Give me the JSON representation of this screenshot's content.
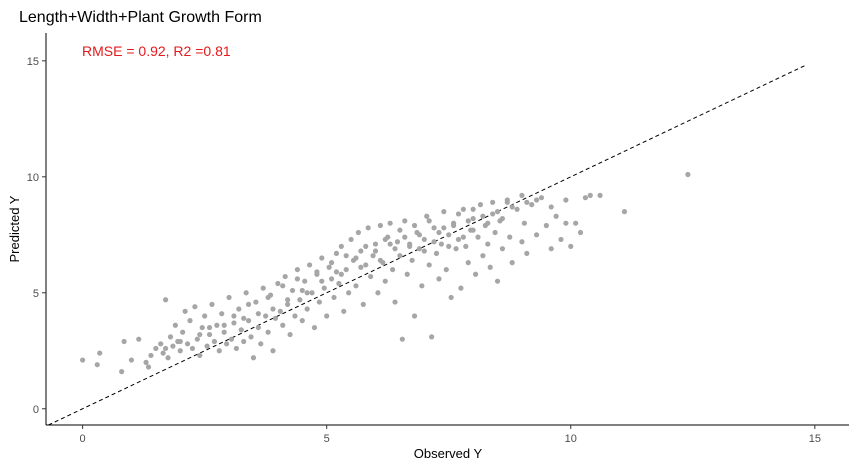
{
  "chart_data": {
    "type": "scatter",
    "title": "Length+Width+Plant Growth Form",
    "annotation": "RMSE = 0.92, R2 =0.81",
    "xlabel": "Observed Y",
    "ylabel": "Predicted Y",
    "xlim": [
      -0.75,
      15.7
    ],
    "ylim": [
      -0.7,
      16.2
    ],
    "x_ticks": [
      0,
      5,
      10,
      15
    ],
    "y_ticks": [
      0,
      5,
      10,
      15
    ],
    "grid": false,
    "reference_line": {
      "style": "dashed",
      "color": "#000000",
      "slope": 1,
      "intercept": 0,
      "x_range": [
        -0.7,
        14.8
      ]
    },
    "point_color": "#a6a6a6",
    "points": [
      [
        0.0,
        2.1
      ],
      [
        0.3,
        1.9
      ],
      [
        0.35,
        2.4
      ],
      [
        0.8,
        1.6
      ],
      [
        0.85,
        2.9
      ],
      [
        1.0,
        2.1
      ],
      [
        1.15,
        3.0
      ],
      [
        1.3,
        2.0
      ],
      [
        1.35,
        1.8
      ],
      [
        1.4,
        2.3
      ],
      [
        1.5,
        2.6
      ],
      [
        1.6,
        2.8
      ],
      [
        1.65,
        2.4
      ],
      [
        1.7,
        4.7
      ],
      [
        1.75,
        2.2
      ],
      [
        1.8,
        3.1
      ],
      [
        1.85,
        2.7
      ],
      [
        1.9,
        3.6
      ],
      [
        1.95,
        2.9
      ],
      [
        2.0,
        2.5
      ],
      [
        2.05,
        3.3
      ],
      [
        2.1,
        4.2
      ],
      [
        2.15,
        2.8
      ],
      [
        2.2,
        3.8
      ],
      [
        2.25,
        2.6
      ],
      [
        2.3,
        4.4
      ],
      [
        2.35,
        3.0
      ],
      [
        2.4,
        2.3
      ],
      [
        2.45,
        3.5
      ],
      [
        2.5,
        4.0
      ],
      [
        2.55,
        2.7
      ],
      [
        2.6,
        3.2
      ],
      [
        2.65,
        4.5
      ],
      [
        2.7,
        2.9
      ],
      [
        2.75,
        3.6
      ],
      [
        2.8,
        2.5
      ],
      [
        2.85,
        4.1
      ],
      [
        2.9,
        3.3
      ],
      [
        2.95,
        2.8
      ],
      [
        3.0,
        4.8
      ],
      [
        3.05,
        3.0
      ],
      [
        3.1,
        3.7
      ],
      [
        3.15,
        2.6
      ],
      [
        3.2,
        4.3
      ],
      [
        3.25,
        3.4
      ],
      [
        3.3,
        2.9
      ],
      [
        3.35,
        5.0
      ],
      [
        3.4,
        3.8
      ],
      [
        3.45,
        3.1
      ],
      [
        3.5,
        2.2
      ],
      [
        3.55,
        4.6
      ],
      [
        3.6,
        3.5
      ],
      [
        3.65,
        2.8
      ],
      [
        3.7,
        5.2
      ],
      [
        3.75,
        4.0
      ],
      [
        3.8,
        3.3
      ],
      [
        3.85,
        4.9
      ],
      [
        3.9,
        2.5
      ],
      [
        3.95,
        3.9
      ],
      [
        4.0,
        5.4
      ],
      [
        4.05,
        4.2
      ],
      [
        4.1,
        3.6
      ],
      [
        4.15,
        5.7
      ],
      [
        4.2,
        4.5
      ],
      [
        4.25,
        3.2
      ],
      [
        4.3,
        5.1
      ],
      [
        4.35,
        4.0
      ],
      [
        4.4,
        6.0
      ],
      [
        4.45,
        4.7
      ],
      [
        4.5,
        3.8
      ],
      [
        4.55,
        5.5
      ],
      [
        4.6,
        4.3
      ],
      [
        4.65,
        6.2
      ],
      [
        4.7,
        5.0
      ],
      [
        4.75,
        3.5
      ],
      [
        4.8,
        5.8
      ],
      [
        4.85,
        4.6
      ],
      [
        4.9,
        6.5
      ],
      [
        4.95,
        5.2
      ],
      [
        5.0,
        4.0
      ],
      [
        5.05,
        6.1
      ],
      [
        5.1,
        5.6
      ],
      [
        5.15,
        4.8
      ],
      [
        5.2,
        6.7
      ],
      [
        5.25,
        5.4
      ],
      [
        5.3,
        7.0
      ],
      [
        5.35,
        4.2
      ],
      [
        5.4,
        6.0
      ],
      [
        5.45,
        5.0
      ],
      [
        5.5,
        7.3
      ],
      [
        5.55,
        6.4
      ],
      [
        5.6,
        5.3
      ],
      [
        5.65,
        7.6
      ],
      [
        5.7,
        6.8
      ],
      [
        5.75,
        4.5
      ],
      [
        5.8,
        6.2
      ],
      [
        5.85,
        7.8
      ],
      [
        5.9,
        5.7
      ],
      [
        5.95,
        6.6
      ],
      [
        6.0,
        7.1
      ],
      [
        6.05,
        5.0
      ],
      [
        6.1,
        7.9
      ],
      [
        6.15,
        6.3
      ],
      [
        6.2,
        5.5
      ],
      [
        6.25,
        7.4
      ],
      [
        6.3,
        8.0
      ],
      [
        6.35,
        6.0
      ],
      [
        6.4,
        4.6
      ],
      [
        6.45,
        7.2
      ],
      [
        6.5,
        6.6
      ],
      [
        6.55,
        3.0
      ],
      [
        6.6,
        8.1
      ],
      [
        6.65,
        5.8
      ],
      [
        6.7,
        7.0
      ],
      [
        6.75,
        6.4
      ],
      [
        6.8,
        4.0
      ],
      [
        6.85,
        7.6
      ],
      [
        6.9,
        6.9
      ],
      [
        6.95,
        5.3
      ],
      [
        7.0,
        7.3
      ],
      [
        7.05,
        8.3
      ],
      [
        7.1,
        6.2
      ],
      [
        7.15,
        3.1
      ],
      [
        7.2,
        7.8
      ],
      [
        7.25,
        6.7
      ],
      [
        7.3,
        5.6
      ],
      [
        7.35,
        7.1
      ],
      [
        7.4,
        8.5
      ],
      [
        7.45,
        6.0
      ],
      [
        7.5,
        7.5
      ],
      [
        7.55,
        4.8
      ],
      [
        7.6,
        8.0
      ],
      [
        7.65,
        6.9
      ],
      [
        7.7,
        7.3
      ],
      [
        7.75,
        5.2
      ],
      [
        7.8,
        8.6
      ],
      [
        7.85,
        7.0
      ],
      [
        7.9,
        6.3
      ],
      [
        7.95,
        7.7
      ],
      [
        8.0,
        8.2
      ],
      [
        8.05,
        5.8
      ],
      [
        8.1,
        7.4
      ],
      [
        8.15,
        8.8
      ],
      [
        8.2,
        6.6
      ],
      [
        8.25,
        7.9
      ],
      [
        8.3,
        7.1
      ],
      [
        8.35,
        6.1
      ],
      [
        8.4,
        8.4
      ],
      [
        8.45,
        7.6
      ],
      [
        8.5,
        5.5
      ],
      [
        8.55,
        8.1
      ],
      [
        8.6,
        6.9
      ],
      [
        8.7,
        8.9
      ],
      [
        8.75,
        7.4
      ],
      [
        8.8,
        6.3
      ],
      [
        8.9,
        8.6
      ],
      [
        9.0,
        7.2
      ],
      [
        9.05,
        8.0
      ],
      [
        9.1,
        6.7
      ],
      [
        9.2,
        8.8
      ],
      [
        9.3,
        7.5
      ],
      [
        9.4,
        9.1
      ],
      [
        9.5,
        7.9
      ],
      [
        9.6,
        6.9
      ],
      [
        9.7,
        8.3
      ],
      [
        9.8,
        7.3
      ],
      [
        9.9,
        9.0
      ],
      [
        10.0,
        7.0
      ],
      [
        10.1,
        8.0
      ],
      [
        10.3,
        9.1
      ],
      [
        10.4,
        9.2
      ],
      [
        10.6,
        9.2
      ],
      [
        11.1,
        8.5
      ],
      [
        12.4,
        10.1
      ],
      [
        5.2,
        5.9
      ],
      [
        5.6,
        6.5
      ],
      [
        6.0,
        6.8
      ],
      [
        6.3,
        7.1
      ],
      [
        6.6,
        7.4
      ],
      [
        6.9,
        7.5
      ],
      [
        7.2,
        7.2
      ],
      [
        7.5,
        7.0
      ],
      [
        7.8,
        7.4
      ],
      [
        8.0,
        7.7
      ],
      [
        8.3,
        8.0
      ],
      [
        8.6,
        8.2
      ],
      [
        4.6,
        5.0
      ],
      [
        4.9,
        5.5
      ],
      [
        5.3,
        5.8
      ],
      [
        5.7,
        6.1
      ],
      [
        6.1,
        6.4
      ],
      [
        6.4,
        6.9
      ],
      [
        6.7,
        7.1
      ],
      [
        7.0,
        6.8
      ],
      [
        7.3,
        7.6
      ],
      [
        7.6,
        7.9
      ],
      [
        7.9,
        8.1
      ],
      [
        8.2,
        8.3
      ],
      [
        8.5,
        8.5
      ],
      [
        8.8,
        8.7
      ],
      [
        9.1,
        8.9
      ],
      [
        3.9,
        4.3
      ],
      [
        4.2,
        4.7
      ],
      [
        4.5,
        5.1
      ],
      [
        3.3,
        3.9
      ],
      [
        3.6,
        4.1
      ],
      [
        2.9,
        3.6
      ],
      [
        2.4,
        3.2
      ],
      [
        2.0,
        2.9
      ],
      [
        1.7,
        2.6
      ],
      [
        2.6,
        3.5
      ],
      [
        3.1,
        4.0
      ],
      [
        3.4,
        4.5
      ],
      [
        3.8,
        4.8
      ],
      [
        4.1,
        5.3
      ],
      [
        4.4,
        5.6
      ],
      [
        4.8,
        5.9
      ],
      [
        5.1,
        6.3
      ],
      [
        5.4,
        6.6
      ],
      [
        5.8,
        7.0
      ],
      [
        6.2,
        7.3
      ],
      [
        6.5,
        7.7
      ],
      [
        6.8,
        7.9
      ],
      [
        7.1,
        8.1
      ],
      [
        7.4,
        7.8
      ],
      [
        7.7,
        8.4
      ],
      [
        8.0,
        8.6
      ],
      [
        8.4,
        8.9
      ],
      [
        8.7,
        9.0
      ],
      [
        9.0,
        9.2
      ],
      [
        9.3,
        9.0
      ],
      [
        9.6,
        8.7
      ],
      [
        9.9,
        8.0
      ],
      [
        10.2,
        7.6
      ]
    ]
  }
}
